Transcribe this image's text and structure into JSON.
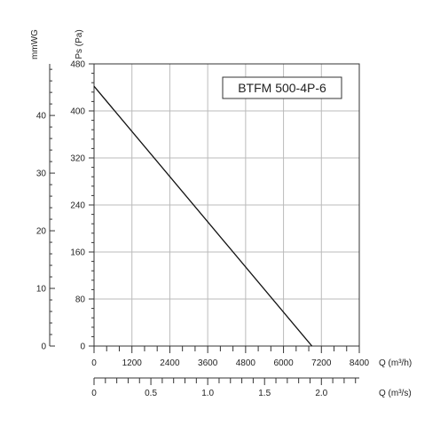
{
  "chart_data": {
    "type": "line",
    "title": "BTFM 500-4P-6",
    "grid": true,
    "x_axis": {
      "label": "Q (m³/h)",
      "range": [
        0,
        8400
      ],
      "ticks": [
        0,
        1200,
        2400,
        3600,
        4800,
        6000,
        7200,
        8400
      ],
      "tick_labels": [
        "0",
        "1200",
        "2400",
        "3600",
        "4800",
        "6000",
        "7200",
        "8400"
      ]
    },
    "x_axis_secondary": {
      "label": "Q (m³/s)",
      "ticks": [
        0,
        0.5,
        1.0,
        1.5,
        2.0
      ],
      "tick_labels": [
        "0",
        "0.5",
        "1.0",
        "1.5",
        "2.0"
      ]
    },
    "y_axis": {
      "label": "Ps (Pa)",
      "range": [
        0,
        480
      ],
      "ticks": [
        0,
        80,
        160,
        240,
        320,
        400,
        480
      ],
      "tick_labels": [
        "0",
        "80",
        "160",
        "240",
        "320",
        "400",
        "480"
      ]
    },
    "y_axis_secondary": {
      "label": "mmWG",
      "ticks": [
        0,
        10,
        20,
        30,
        40
      ],
      "tick_labels": [
        "0",
        "10",
        "20",
        "30",
        "40"
      ]
    },
    "series": [
      {
        "x": [
          0,
          6900
        ],
        "y": [
          442,
          0
        ]
      }
    ]
  }
}
